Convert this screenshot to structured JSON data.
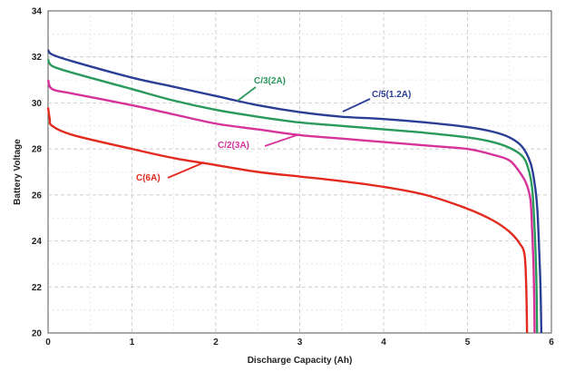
{
  "chart_data": {
    "type": "line",
    "xlabel": "Discharge Capacity (Ah)",
    "ylabel": "Battery Voltage",
    "xlim": [
      0,
      6
    ],
    "ylim": [
      20,
      34
    ],
    "x_ticks": [
      "0",
      "1",
      "2",
      "3",
      "4",
      "5",
      "6"
    ],
    "y_ticks": [
      "20",
      "22",
      "24",
      "26",
      "28",
      "30",
      "32",
      "34"
    ],
    "grid": true,
    "series": [
      {
        "name": "C/5(1.2A)",
        "color": "#2b3e96",
        "x": [
          0,
          0.05,
          0.3,
          1,
          1.5,
          2,
          2.5,
          3,
          3.5,
          4,
          4.5,
          5,
          5.3,
          5.5,
          5.65,
          5.75,
          5.8,
          5.83,
          5.85,
          5.87,
          5.88
        ],
        "y": [
          32.3,
          32.1,
          31.8,
          31.1,
          30.7,
          30.3,
          29.9,
          29.6,
          29.4,
          29.3,
          29.15,
          28.95,
          28.75,
          28.5,
          28.1,
          27.4,
          26.5,
          25.5,
          24.0,
          22.0,
          20.0
        ]
      },
      {
        "name": "C/3(2A)",
        "color": "#2a9a5c",
        "x": [
          0,
          0.05,
          0.3,
          1,
          1.5,
          2,
          2.5,
          3,
          3.5,
          4,
          4.5,
          5,
          5.3,
          5.5,
          5.65,
          5.72,
          5.77,
          5.8,
          5.82,
          5.83
        ],
        "y": [
          31.9,
          31.6,
          31.3,
          30.6,
          30.1,
          29.7,
          29.4,
          29.15,
          29.0,
          28.85,
          28.7,
          28.5,
          28.3,
          28.05,
          27.7,
          27.2,
          26.3,
          24.5,
          22.5,
          20.0
        ]
      },
      {
        "name": "C/2(3A)",
        "color": "#d6339a",
        "x": [
          0,
          0.05,
          0.3,
          1,
          1.5,
          2,
          2.5,
          3,
          3.5,
          4,
          4.5,
          5,
          5.3,
          5.5,
          5.62,
          5.7,
          5.75,
          5.77,
          5.79,
          5.8
        ],
        "y": [
          31.0,
          30.6,
          30.4,
          29.9,
          29.5,
          29.1,
          28.85,
          28.6,
          28.45,
          28.3,
          28.15,
          28.0,
          27.75,
          27.5,
          27.0,
          26.5,
          25.8,
          24.5,
          22.5,
          20.0
        ]
      },
      {
        "name": "C(6A)",
        "color": "#e32a1f",
        "x": [
          0,
          0.02,
          0.05,
          0.3,
          1,
          1.5,
          2,
          2.5,
          3,
          3.5,
          4,
          4.5,
          5,
          5.3,
          5.5,
          5.62,
          5.68,
          5.7,
          5.71
        ],
        "y": [
          29.8,
          29.3,
          29.0,
          28.6,
          28.0,
          27.6,
          27.3,
          27.0,
          26.8,
          26.6,
          26.35,
          26.0,
          25.4,
          24.9,
          24.4,
          23.9,
          23.4,
          22.0,
          20.0
        ]
      }
    ]
  }
}
